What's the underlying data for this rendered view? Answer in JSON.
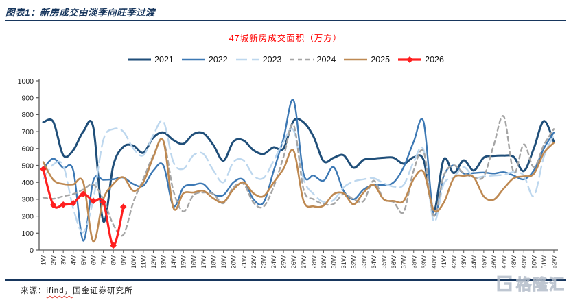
{
  "header": {
    "title": "图表1：新房成交由淡季向旺季过渡"
  },
  "footer": {
    "prefix": "来源：",
    "source_name": "ifind，",
    "source_rest": "国金证券研究所"
  },
  "watermark": {
    "text": "格隆汇"
  },
  "chart_data": {
    "type": "line",
    "title": "47城新房成交面积（万方）",
    "xlabel": "",
    "ylabel": "",
    "ylim": [
      0,
      1000
    ],
    "y_ticks": [
      0,
      100,
      200,
      300,
      400,
      500,
      600,
      700,
      800,
      900,
      1000
    ],
    "grid": false,
    "legend_position": "top",
    "x_labels": [
      "1W",
      "2W",
      "3W",
      "4W",
      "5W",
      "6W",
      "7W",
      "8W",
      "9W",
      "10W",
      "11W",
      "12W",
      "13W",
      "14W",
      "15W",
      "16W",
      "17W",
      "18W",
      "19W",
      "20W",
      "21W",
      "22W",
      "23W",
      "24W",
      "25W",
      "26W",
      "27W",
      "28W",
      "29W",
      "30W",
      "31W",
      "32W",
      "33W",
      "34W",
      "35W",
      "36W",
      "37W",
      "38W",
      "39W",
      "40W",
      "41W",
      "42W",
      "43W",
      "44W",
      "45W",
      "46W",
      "47W",
      "48W",
      "49W",
      "50W",
      "51W",
      "52W"
    ],
    "series": [
      {
        "name": "2021",
        "color": "#1F4E79",
        "dash": "",
        "width": 3,
        "values": [
          755,
          758,
          560,
          590,
          700,
          725,
          170,
          500,
          610,
          617,
          575,
          665,
          695,
          650,
          628,
          685,
          690,
          620,
          528,
          641,
          648,
          590,
          568,
          607,
          600,
          763,
          755,
          670,
          525,
          545,
          560,
          486,
          533,
          540,
          545,
          545,
          510,
          548,
          530,
          233,
          535,
          455,
          530,
          470,
          546,
          556,
          558,
          550,
          467,
          600,
          762,
          640
        ]
      },
      {
        "name": "2022",
        "color": "#3C78B4",
        "dash": "",
        "width": 2.4,
        "values": [
          480,
          540,
          485,
          470,
          55,
          410,
          415,
          418,
          428,
          390,
          380,
          470,
          500,
          260,
          370,
          385,
          390,
          330,
          325,
          400,
          415,
          300,
          280,
          465,
          660,
          885,
          450,
          440,
          410,
          490,
          350,
          300,
          358,
          385,
          385,
          400,
          490,
          640,
          755,
          210,
          438,
          500,
          452,
          455,
          458,
          452,
          460,
          440,
          418,
          470,
          600,
          695
        ]
      },
      {
        "name": "2023",
        "color": "#BDD7EE",
        "dash": "16 7",
        "width": 2.4,
        "values": [
          420,
          505,
          498,
          245,
          105,
          300,
          650,
          715,
          700,
          600,
          560,
          680,
          760,
          520,
          480,
          560,
          568,
          470,
          400,
          520,
          530,
          440,
          425,
          526,
          640,
          708,
          420,
          331,
          284,
          295,
          370,
          405,
          418,
          425,
          395,
          375,
          385,
          520,
          590,
          170,
          390,
          430,
          490,
          430,
          435,
          440,
          445,
          460,
          440,
          320,
          550,
          680
        ]
      },
      {
        "name": "2024",
        "color": "#A5A5A5",
        "dash": "6 5",
        "width": 2.4,
        "values": [
          310,
          303,
          318,
          331,
          358,
          387,
          300,
          150,
          90,
          283,
          420,
          560,
          645,
          350,
          228,
          324,
          340,
          330,
          276,
          371,
          391,
          280,
          256,
          371,
          550,
          740,
          360,
          300,
          272,
          272,
          331,
          300,
          290,
          410,
          300,
          283,
          225,
          470,
          580,
          202,
          440,
          500,
          455,
          430,
          435,
          620,
          789,
          458,
          625,
          490,
          620,
          715
        ]
      },
      {
        "name": "2025",
        "color": "#BE8952",
        "dash": "",
        "width": 2.6,
        "values": [
          520,
          415,
          390,
          388,
          400,
          50,
          300,
          390,
          430,
          350,
          400,
          550,
          645,
          250,
          335,
          340,
          350,
          305,
          283,
          358,
          400,
          335,
          318,
          398,
          480,
          587,
          290,
          258,
          262,
          330,
          335,
          270,
          340,
          385,
          300,
          290,
          290,
          420,
          460,
          237,
          280,
          425,
          438,
          430,
          317,
          298,
          364,
          425,
          435,
          450,
          573,
          634
        ]
      },
      {
        "name": "2026",
        "color": "#FF1F1F",
        "dash": "",
        "width": 3.2,
        "marker": "diamond",
        "values": [
          478,
          266,
          268,
          277,
          331,
          290,
          283,
          27,
          255
        ]
      }
    ]
  }
}
